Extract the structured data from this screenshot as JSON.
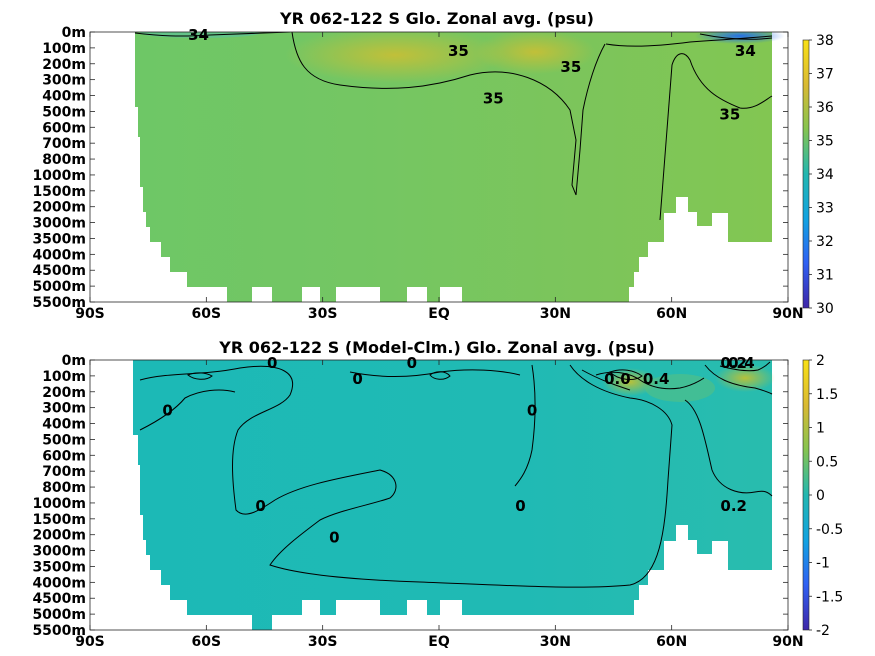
{
  "figure": {
    "colormap": [
      "#3e26a8",
      "#2f61f3",
      "#12a2e1",
      "#23b7b0",
      "#86c44f",
      "#d8b933",
      "#f9e016"
    ]
  },
  "chart_data": [
    {
      "type": "heatmap",
      "title": "YR 062-122 S Glo. Zonal avg. (psu)",
      "xlabel": "",
      "ylabel": "",
      "x_ticks": [
        "90S",
        "60S",
        "30S",
        "EQ",
        "30N",
        "60N",
        "90N"
      ],
      "x_values": [
        -90,
        -60,
        -30,
        0,
        30,
        60,
        90
      ],
      "y_ticks": [
        "0m",
        "100m",
        "200m",
        "300m",
        "400m",
        "500m",
        "600m",
        "700m",
        "800m",
        "1000m",
        "1500m",
        "2000m",
        "3000m",
        "3500m",
        "4000m",
        "4500m",
        "5000m",
        "5500m"
      ],
      "y_values": [
        0,
        100,
        200,
        300,
        400,
        500,
        600,
        700,
        800,
        1000,
        1500,
        2000,
        3000,
        3500,
        4000,
        4500,
        5000,
        5500
      ],
      "colorbar": {
        "min": 30,
        "max": 38,
        "ticks": [
          "30",
          "31",
          "32",
          "33",
          "34",
          "35",
          "36",
          "37",
          "38"
        ]
      },
      "contour_labels": [
        {
          "text": "34",
          "lat": -62,
          "depth": 0
        },
        {
          "text": "35",
          "lat": 5,
          "depth": 100
        },
        {
          "text": "35",
          "lat": 14,
          "depth": 400
        },
        {
          "text": "35",
          "lat": 34,
          "depth": 200
        },
        {
          "text": "34",
          "lat": 79,
          "depth": 100
        },
        {
          "text": "35",
          "lat": 75,
          "depth": 500
        }
      ]
    },
    {
      "type": "heatmap",
      "title": "YR 062-122 S (Model-Clm.) Glo. Zonal avg. (psu)",
      "xlabel": "",
      "ylabel": "",
      "x_ticks": [
        "90S",
        "60S",
        "30S",
        "EQ",
        "30N",
        "60N",
        "90N"
      ],
      "x_values": [
        -90,
        -60,
        -30,
        0,
        30,
        60,
        90
      ],
      "y_ticks": [
        "0m",
        "100m",
        "200m",
        "300m",
        "400m",
        "500m",
        "600m",
        "700m",
        "800m",
        "1000m",
        "1500m",
        "2000m",
        "3000m",
        "3500m",
        "4000m",
        "4500m",
        "5000m",
        "5500m"
      ],
      "y_values": [
        0,
        100,
        200,
        300,
        400,
        500,
        600,
        700,
        800,
        1000,
        1500,
        2000,
        3000,
        3500,
        4000,
        4500,
        5000,
        5500
      ],
      "colorbar": {
        "min": -2,
        "max": 2,
        "ticks": [
          "-2",
          "-1.5",
          "-1",
          "-0.5",
          "0",
          "0.5",
          "1",
          "1.5",
          "2"
        ]
      },
      "contour_labels": [
        {
          "text": "0",
          "lat": -43,
          "depth": 0
        },
        {
          "text": "0",
          "lat": -21,
          "depth": 100
        },
        {
          "text": "0",
          "lat": -7,
          "depth": 0
        },
        {
          "text": "0",
          "lat": -70,
          "depth": 300
        },
        {
          "text": "0",
          "lat": -46,
          "depth": 1000
        },
        {
          "text": "0",
          "lat": -27,
          "depth": 2000
        },
        {
          "text": "0",
          "lat": 24,
          "depth": 300
        },
        {
          "text": "0",
          "lat": 21,
          "depth": 1000
        },
        {
          "text": "0.0",
          "lat": 46,
          "depth": 100
        },
        {
          "text": "0.4",
          "lat": 56,
          "depth": 100
        },
        {
          "text": "0.2",
          "lat": 76,
          "depth": 0
        },
        {
          "text": "0.4",
          "lat": 78,
          "depth": 0
        },
        {
          "text": "0.2",
          "lat": 76,
          "depth": 1000
        }
      ]
    }
  ]
}
